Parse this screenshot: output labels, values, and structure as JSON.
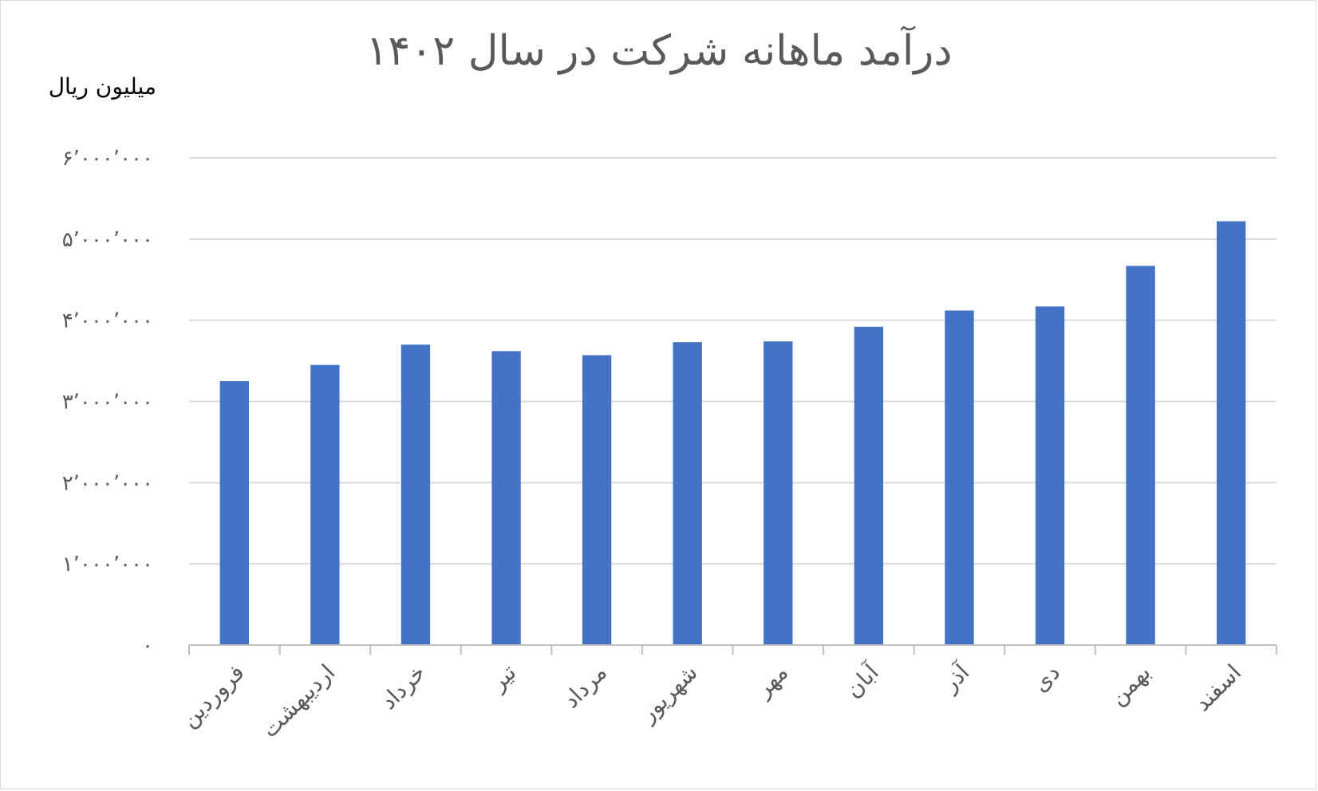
{
  "chart_data": {
    "type": "bar",
    "title": "درآمد ماهانه شرکت در سال ۱۴۰۲",
    "ylabel": "میلیون ریال",
    "xlabel": "",
    "categories": [
      "فروردین",
      "اردیبهشت",
      "خرداد",
      "تیر",
      "مرداد",
      "شهریور",
      "مهر",
      "آبان",
      "آذر",
      "دی",
      "بهمن",
      "اسفند"
    ],
    "series": [
      {
        "values": [
          3250000,
          3450000,
          3700000,
          3620000,
          3570000,
          3730000,
          3740000,
          3920000,
          4120000,
          4170000,
          4670000,
          5220000
        ],
        "color": "#4472c4"
      }
    ],
    "ylim": [
      0,
      6000000
    ],
    "yticks": [
      0,
      1000000,
      2000000,
      3000000,
      4000000,
      5000000,
      6000000
    ],
    "ytick_labels": [
      "۰",
      "۱٬۰۰۰٬۰۰۰",
      "۲٬۰۰۰٬۰۰۰",
      "۳٬۰۰۰٬۰۰۰",
      "۴٬۰۰۰٬۰۰۰",
      "۵٬۰۰۰٬۰۰۰",
      "۶٬۰۰۰٬۰۰۰"
    ],
    "grid": true,
    "legend": "none",
    "gridline_color": "#d9d9d9",
    "axis_color": "#bfbfbf",
    "text_color": "#595959"
  }
}
